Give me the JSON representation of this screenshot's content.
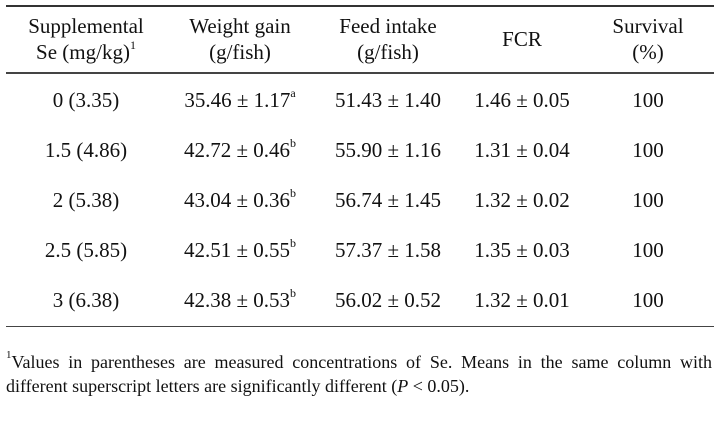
{
  "table": {
    "headers": [
      {
        "line1": "Supplemental",
        "line2": "Se (mg/kg)",
        "sup": "1"
      },
      {
        "line1": "Weight gain",
        "line2": "(g/fish)",
        "sup": ""
      },
      {
        "line1": "Feed intake",
        "line2": "(g/fish)",
        "sup": ""
      },
      {
        "line1": "FCR",
        "line2": "",
        "sup": ""
      },
      {
        "line1": "Survival",
        "line2": "(%)",
        "sup": ""
      }
    ],
    "rows": [
      {
        "se": "0 (3.35)",
        "wg": "35.46 ± 1.17",
        "wg_sup": "a",
        "fi": "51.43 ± 1.40",
        "fcr": "1.46 ± 0.05",
        "survival": "100"
      },
      {
        "se": "1.5 (4.86)",
        "wg": "42.72 ± 0.46",
        "wg_sup": "b",
        "fi": "55.90 ± 1.16",
        "fcr": "1.31 ± 0.04",
        "survival": "100"
      },
      {
        "se": "2 (5.38)",
        "wg": "43.04 ± 0.36",
        "wg_sup": "b",
        "fi": "56.74 ± 1.45",
        "fcr": "1.32 ± 0.02",
        "survival": "100"
      },
      {
        "se": "2.5 (5.85)",
        "wg": "42.51 ± 0.55",
        "wg_sup": "b",
        "fi": "57.37 ± 1.58",
        "fcr": "1.35 ± 0.03",
        "survival": "100"
      },
      {
        "se": "3 (6.38)",
        "wg": "42.38 ± 0.53",
        "wg_sup": "b",
        "fi": "56.02 ± 0.52",
        "fcr": "1.32 ± 0.01",
        "survival": "100"
      }
    ]
  },
  "footnote": {
    "marker": "1",
    "text_before": "Values in parentheses are measured concentrations of Se. Means in the same column with different superscript letters are significantly different (",
    "italic": "P",
    "text_after": " < 0.05)."
  }
}
